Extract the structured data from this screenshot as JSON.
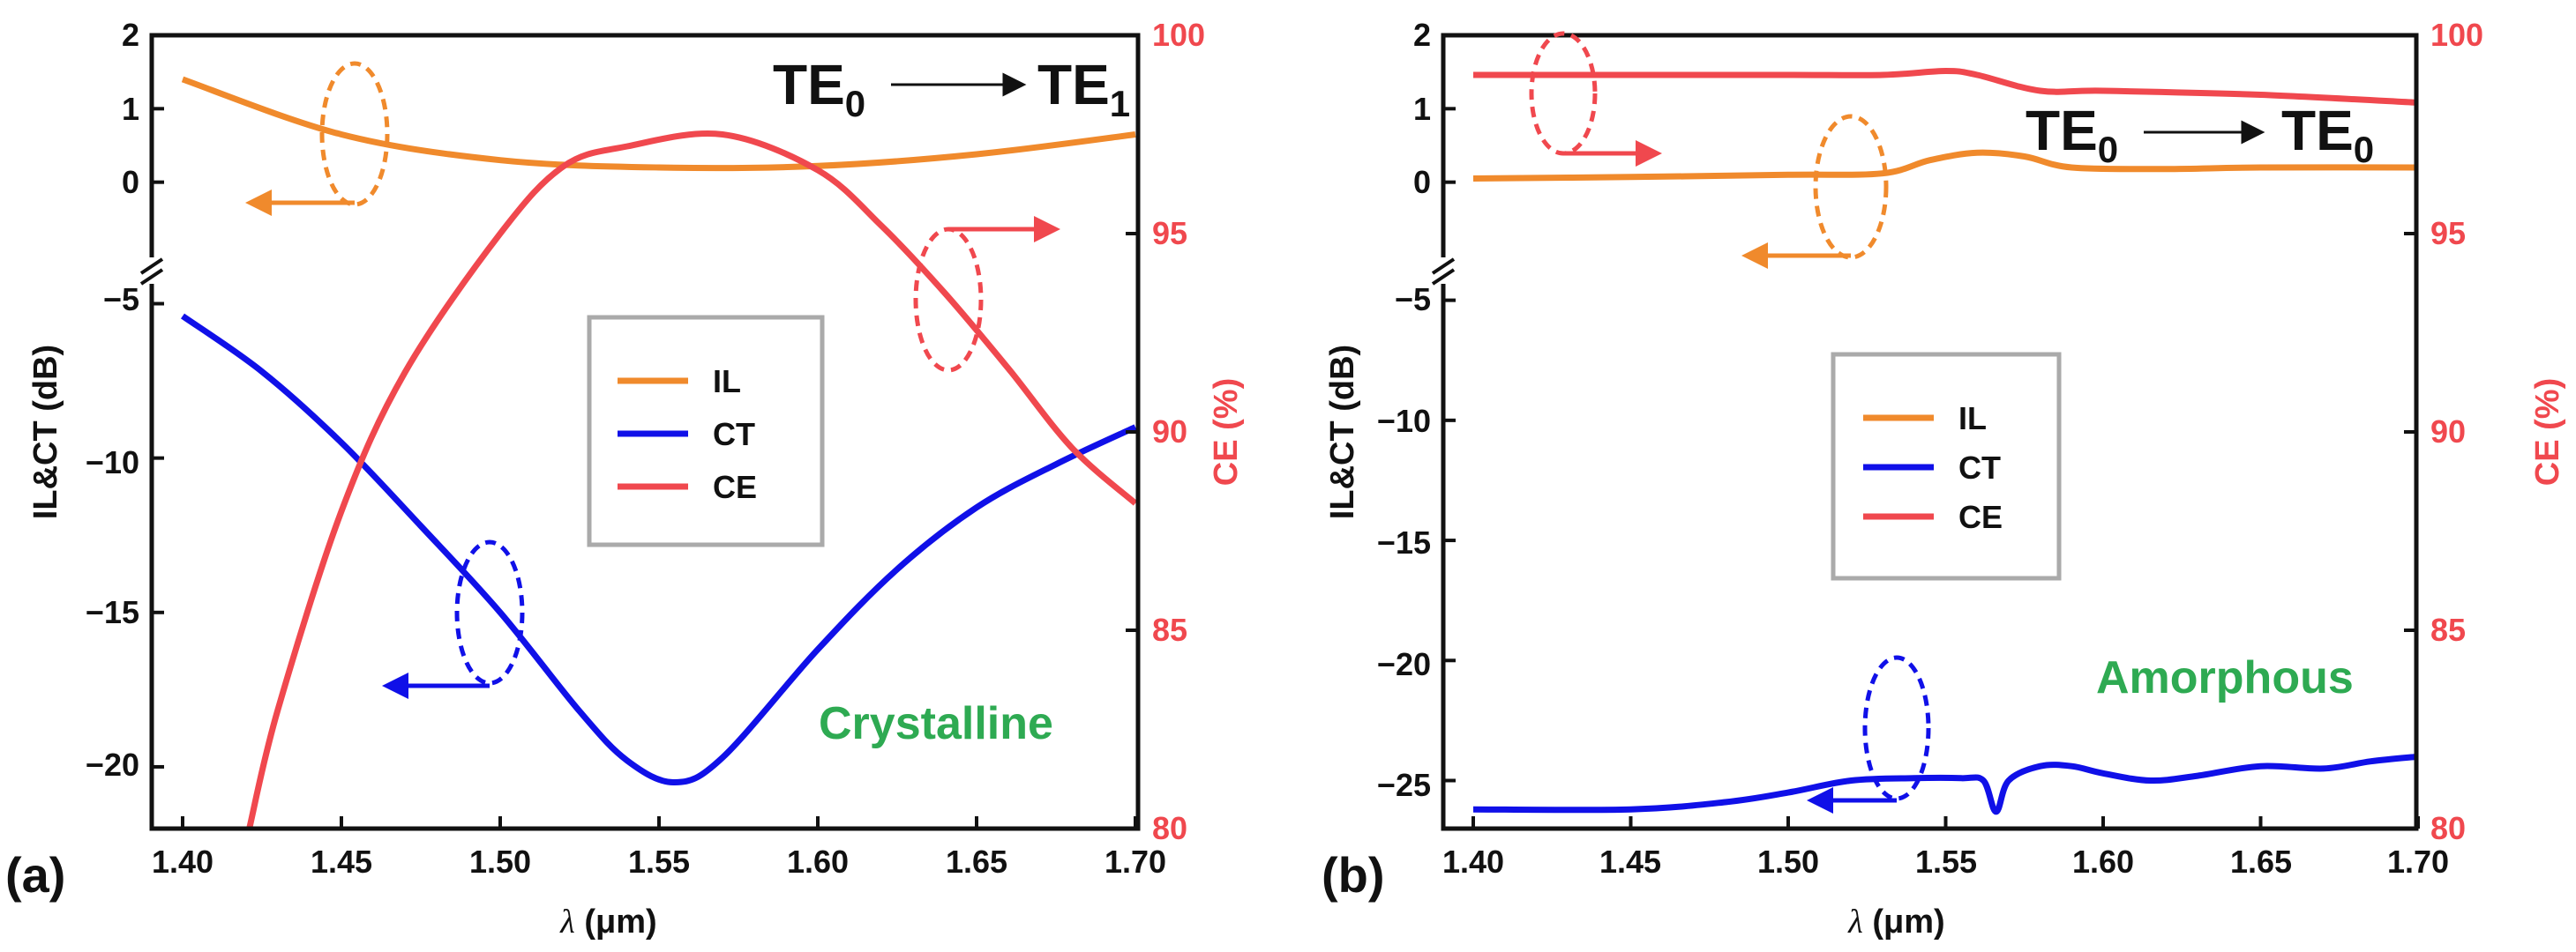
{
  "colors": {
    "il": "#F08A2C",
    "ct": "#1010E8",
    "ce": "#F0484E",
    "material": "#2EAA52",
    "legend_border": "#AAAAAA"
  },
  "chart_data": [
    {
      "type": "line",
      "panel_label": "(a)",
      "material_label": "Crystalline",
      "mode": {
        "from_base": "TE",
        "from_sub": "0",
        "to_base": "TE",
        "to_sub": "1"
      },
      "xlabel_symbol": "λ",
      "xlabel_unit": "(μm)",
      "ylabel_left": "IL&CT (dB)",
      "ylabel_right": "CE (%)",
      "xlim": [
        1.4,
        1.7
      ],
      "x_ticks": [
        "1.40",
        "1.45",
        "1.50",
        "1.55",
        "1.60",
        "1.65",
        "1.70"
      ],
      "y_left_upper_ticks": [
        "2",
        "1",
        "0"
      ],
      "y_left_lower_ticks": [
        "−5",
        "−10",
        "−15",
        "−20"
      ],
      "y_right_ticks": [
        "100",
        "95",
        "90",
        "85",
        "80"
      ],
      "y_left_upper_range": [
        -1.0,
        2.0
      ],
      "y_left_lower_range": [
        -22.0,
        -4.5
      ],
      "y_right_range": [
        80,
        100
      ],
      "legend": [
        "IL",
        "CT",
        "CE"
      ],
      "series": [
        {
          "name": "IL",
          "axis": "left",
          "x": [
            1.4,
            1.45,
            1.5,
            1.55,
            1.6,
            1.65,
            1.7
          ],
          "y": [
            1.4,
            0.65,
            0.3,
            0.2,
            0.22,
            0.38,
            0.65
          ]
        },
        {
          "name": "CT",
          "axis": "left",
          "x": [
            1.4,
            1.425,
            1.45,
            1.475,
            1.5,
            1.525,
            1.54,
            1.555,
            1.57,
            1.6,
            1.625,
            1.65,
            1.675,
            1.7
          ],
          "y": [
            -5.4,
            -7.2,
            -9.5,
            -12.2,
            -15.0,
            -18.2,
            -19.8,
            -20.5,
            -19.7,
            -16.2,
            -13.6,
            -11.6,
            -10.2,
            -9.0
          ]
        },
        {
          "name": "CE",
          "axis": "right",
          "x": [
            1.421,
            1.43,
            1.45,
            1.47,
            1.5,
            1.52,
            1.54,
            1.57,
            1.6,
            1.62,
            1.64,
            1.66,
            1.68,
            1.7
          ],
          "y": [
            80.0,
            83.0,
            88.0,
            91.5,
            95.0,
            96.7,
            97.2,
            97.5,
            96.6,
            95.2,
            93.5,
            91.6,
            89.6,
            88.2
          ]
        }
      ]
    },
    {
      "type": "line",
      "panel_label": "(b)",
      "material_label": "Amorphous",
      "mode": {
        "from_base": "TE",
        "from_sub": "0",
        "to_base": "TE",
        "to_sub": "0"
      },
      "xlabel_symbol": "λ",
      "xlabel_unit": "(μm)",
      "ylabel_left": "IL&CT (dB)",
      "ylabel_right": "CE (%)",
      "xlim": [
        1.4,
        1.7
      ],
      "x_ticks": [
        "1.40",
        "1.45",
        "1.50",
        "1.55",
        "1.60",
        "1.65",
        "1.70"
      ],
      "y_left_upper_ticks": [
        "2",
        "1",
        "0"
      ],
      "y_left_lower_ticks": [
        "−5",
        "−10",
        "−15",
        "−20",
        "−25"
      ],
      "y_right_ticks": [
        "100",
        "95",
        "90",
        "85",
        "80"
      ],
      "y_left_upper_range": [
        -1.0,
        2.0
      ],
      "y_left_lower_range": [
        -27.0,
        -4.5
      ],
      "y_right_range": [
        80,
        100
      ],
      "legend": [
        "IL",
        "CT",
        "CE"
      ],
      "series": [
        {
          "name": "IL",
          "axis": "left",
          "x": [
            1.4,
            1.45,
            1.5,
            1.53,
            1.545,
            1.56,
            1.575,
            1.59,
            1.62,
            1.65,
            1.7
          ],
          "y": [
            0.05,
            0.07,
            0.1,
            0.12,
            0.3,
            0.4,
            0.35,
            0.2,
            0.18,
            0.2,
            0.2
          ]
        },
        {
          "name": "CT",
          "axis": "left",
          "x": [
            1.4,
            1.45,
            1.48,
            1.5,
            1.52,
            1.54,
            1.555,
            1.562,
            1.566,
            1.57,
            1.58,
            1.59,
            1.6,
            1.615,
            1.63,
            1.65,
            1.67,
            1.685,
            1.7
          ],
          "y": [
            -26.2,
            -26.2,
            -25.9,
            -25.5,
            -25.0,
            -24.9,
            -24.9,
            -25.0,
            -26.3,
            -25.0,
            -24.4,
            -24.4,
            -24.7,
            -25.0,
            -24.8,
            -24.4,
            -24.5,
            -24.2,
            -24.0
          ]
        },
        {
          "name": "CE",
          "axis": "right",
          "x": [
            1.4,
            1.45,
            1.5,
            1.53,
            1.55,
            1.56,
            1.58,
            1.6,
            1.65,
            1.7
          ],
          "y": [
            99.0,
            99.0,
            99.0,
            99.0,
            99.1,
            99.0,
            98.6,
            98.6,
            98.5,
            98.3
          ]
        }
      ]
    }
  ]
}
